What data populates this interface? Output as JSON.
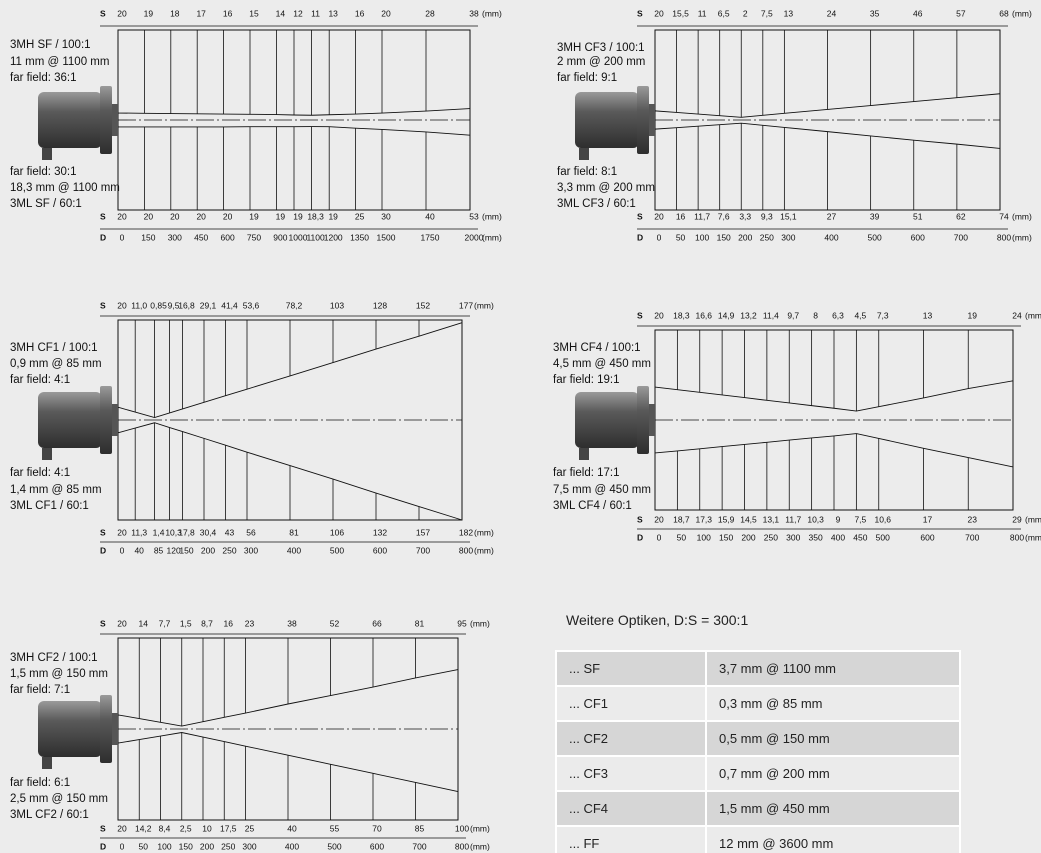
{
  "s_label": "S",
  "d_label": "D",
  "unit": "(mm)",
  "panels": [
    {
      "top_labels": [
        "3MH SF / 100:1",
        "11 mm @ 1100 mm",
        "far field: 36:1"
      ],
      "bottom_labels": [
        "far field: 30:1",
        "18,3 mm @ 1100 mm",
        "3ML SF / 60:1"
      ],
      "s_top": [
        "20",
        "19",
        "18",
        "17",
        "16",
        "15",
        "14",
        "12",
        "11",
        "13",
        "16",
        "20",
        "28",
        "38"
      ],
      "s_bottom": [
        "20",
        "20",
        "20",
        "20",
        "20",
        "19",
        "19",
        "19",
        "18,3",
        "19",
        "25",
        "30",
        "40",
        "53"
      ],
      "d": [
        0,
        150,
        300,
        450,
        600,
        750,
        900,
        1000,
        1100,
        1200,
        1350,
        1500,
        1750,
        2000
      ]
    },
    {
      "top_labels": [
        "3MH CF3 / 100:1",
        "2 mm @ 200 mm",
        "far field: 9:1"
      ],
      "bottom_labels": [
        "far field: 8:1",
        "3,3 mm @ 200 mm",
        "3ML CF3 / 60:1"
      ],
      "s_top": [
        "20",
        "15,5",
        "11",
        "6,5",
        "2",
        "7,5",
        "13",
        "24",
        "35",
        "46",
        "57",
        "68"
      ],
      "s_bottom": [
        "20",
        "16",
        "11,7",
        "7,6",
        "3,3",
        "9,3",
        "15,1",
        "27",
        "39",
        "51",
        "62",
        "74"
      ],
      "d": [
        0,
        50,
        100,
        150,
        200,
        250,
        300,
        400,
        500,
        600,
        700,
        800
      ]
    },
    {
      "top_labels": [
        "3MH CF1 / 100:1",
        "0,9 mm @ 85 mm",
        "far field: 4:1"
      ],
      "bottom_labels": [
        "far field: 4:1",
        "1,4 mm @ 85 mm",
        "3ML CF1 / 60:1"
      ],
      "s_top": [
        "20",
        "11,0",
        "0,85",
        "9,5",
        "16,8",
        "29,1",
        "41,4",
        "53,6",
        "78,2",
        "103",
        "128",
        "152",
        "177"
      ],
      "s_bottom": [
        "20",
        "11,3",
        "1,4",
        "10,3",
        "17,8",
        "30,4",
        "43",
        "56",
        "81",
        "106",
        "132",
        "157",
        "182"
      ],
      "d": [
        0,
        40,
        85,
        120,
        150,
        200,
        250,
        300,
        400,
        500,
        600,
        700,
        800
      ]
    },
    {
      "top_labels": [
        "3MH CF4 / 100:1",
        "4,5 mm @ 450 mm",
        "far field: 19:1"
      ],
      "bottom_labels": [
        "far field: 17:1",
        "7,5 mm @ 450 mm",
        "3ML CF4 / 60:1"
      ],
      "s_top": [
        "20",
        "18,3",
        "16,6",
        "14,9",
        "13,2",
        "11,4",
        "9,7",
        "8",
        "6,3",
        "4,5",
        "7,3",
        "13",
        "19",
        "24"
      ],
      "s_bottom": [
        "20",
        "18,7",
        "17,3",
        "15,9",
        "14,5",
        "13,1",
        "11,7",
        "10,3",
        "9",
        "7,5",
        "10,6",
        "17",
        "23",
        "29"
      ],
      "d": [
        0,
        50,
        100,
        150,
        200,
        250,
        300,
        350,
        400,
        450,
        500,
        600,
        700,
        800
      ]
    },
    {
      "top_labels": [
        "3MH CF2 / 100:1",
        "1,5 mm @ 150 mm",
        "far field: 7:1"
      ],
      "bottom_labels": [
        "far field: 6:1",
        "2,5 mm @ 150 mm",
        "3ML CF2 / 60:1"
      ],
      "s_top": [
        "20",
        "14",
        "7,7",
        "1,5",
        "8,7",
        "16",
        "23",
        "38",
        "52",
        "66",
        "81",
        "95"
      ],
      "s_bottom": [
        "20",
        "14,2",
        "8,4",
        "2,5",
        "10",
        "17,5",
        "25",
        "40",
        "55",
        "70",
        "85",
        "100"
      ],
      "d": [
        0,
        50,
        100,
        150,
        200,
        250,
        300,
        400,
        500,
        600,
        700,
        800
      ]
    }
  ],
  "table": {
    "title": "Weitere Optiken, D:S = 300:1",
    "rows": [
      [
        "... SF",
        "3,7 mm @ 1100 mm"
      ],
      [
        "... CF1",
        "0,3 mm @ 85 mm"
      ],
      [
        "... CF2",
        "0,5 mm @ 150 mm"
      ],
      [
        "... CF3",
        "0,7 mm @ 200 mm"
      ],
      [
        "... CF4",
        "1,5 mm @ 450 mm"
      ],
      [
        "... FF",
        "12 mm @ 3600 mm"
      ]
    ]
  }
}
